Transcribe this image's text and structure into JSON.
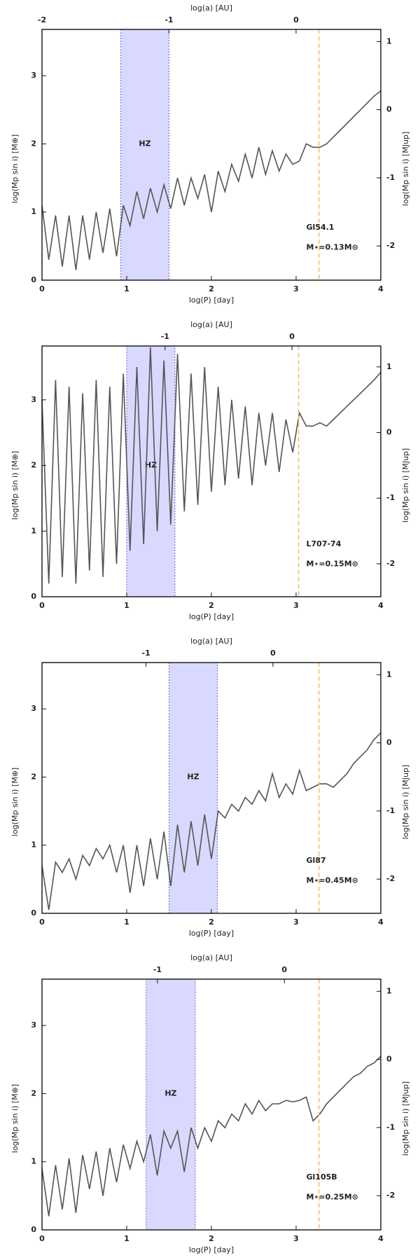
{
  "chart_data": [
    {
      "type": "line",
      "xlabel": "log(P) [day]",
      "x2label": "log(a) [AU]",
      "ylabel": "log(Mp sin i) [M⊕]",
      "y2label": "log(Mp sin i) [MJup]",
      "xlim": [
        0,
        4
      ],
      "xticks": [
        0,
        1,
        2,
        3,
        4
      ],
      "x2lim": [
        -2,
        0.667
      ],
      "x2ticks": [
        -2,
        -1,
        0
      ],
      "ylim": [
        0,
        3.68
      ],
      "yticks": [
        0,
        1,
        2,
        3
      ],
      "y2lim": [
        -2.502,
        1.178
      ],
      "y2ticks": [
        -2,
        -1,
        0,
        1
      ],
      "hz": {
        "label": "HZ",
        "range": [
          0.93,
          1.5
        ],
        "color": "#ccccff"
      },
      "vline": {
        "x": 3.27,
        "color": "#f5c060"
      },
      "star": "Gl54.1",
      "mass_label": "M⋆=0.13M⊙",
      "color": "#555555",
      "x": [
        0,
        0.08,
        0.16,
        0.24,
        0.32,
        0.4,
        0.48,
        0.56,
        0.64,
        0.72,
        0.8,
        0.88,
        0.96,
        1.04,
        1.12,
        1.2,
        1.28,
        1.36,
        1.44,
        1.52,
        1.6,
        1.68,
        1.76,
        1.84,
        1.92,
        2.0,
        2.08,
        2.16,
        2.24,
        2.32,
        2.4,
        2.48,
        2.56,
        2.64,
        2.72,
        2.8,
        2.88,
        2.96,
        3.04,
        3.12,
        3.2,
        3.28,
        3.36,
        3.44,
        3.52,
        3.6,
        3.68,
        3.76,
        3.84,
        3.92,
        4.0
      ],
      "values": [
        1.1,
        0.3,
        0.95,
        0.2,
        0.95,
        0.15,
        0.95,
        0.3,
        1.0,
        0.4,
        1.05,
        0.35,
        1.1,
        0.8,
        1.3,
        0.9,
        1.35,
        1.0,
        1.4,
        1.05,
        1.5,
        1.1,
        1.5,
        1.2,
        1.55,
        1.0,
        1.6,
        1.3,
        1.7,
        1.45,
        1.85,
        1.5,
        1.95,
        1.55,
        1.9,
        1.6,
        1.85,
        1.7,
        1.75,
        2.0,
        1.95,
        1.95,
        2.0,
        2.1,
        2.2,
        2.3,
        2.4,
        2.5,
        2.6,
        2.7,
        2.78
      ]
    },
    {
      "type": "line",
      "xlabel": "log(P) [day]",
      "x2label": "log(a) [AU]",
      "ylabel": "log(Mp sin i) [M⊕]",
      "y2label": "log(Mp sin i) [MJup]",
      "xlim": [
        0,
        4
      ],
      "xticks": [
        0,
        1,
        2,
        3,
        4
      ],
      "x2lim": [
        -1.97,
        0.7
      ],
      "x2ticks": [
        -1,
        0
      ],
      "ylim": [
        0,
        3.82
      ],
      "yticks": [
        0,
        1,
        2,
        3
      ],
      "y2lim": [
        -2.502,
        1.318
      ],
      "y2ticks": [
        -2,
        -1,
        0,
        1
      ],
      "hz": {
        "label": "HZ",
        "range": [
          1.0,
          1.57
        ],
        "color": "#ccccff"
      },
      "vline": {
        "x": 3.03,
        "color": "#f5c060"
      },
      "star": "L707-74",
      "mass_label": "M⋆=0.15M⊙",
      "color": "#555555",
      "x": [
        0,
        0.08,
        0.16,
        0.24,
        0.32,
        0.4,
        0.48,
        0.56,
        0.64,
        0.72,
        0.8,
        0.88,
        0.96,
        1.04,
        1.12,
        1.2,
        1.28,
        1.36,
        1.44,
        1.52,
        1.6,
        1.68,
        1.76,
        1.84,
        1.92,
        2.0,
        2.08,
        2.16,
        2.24,
        2.32,
        2.4,
        2.48,
        2.56,
        2.64,
        2.72,
        2.8,
        2.88,
        2.96,
        3.04,
        3.12,
        3.2,
        3.28,
        3.36,
        3.44,
        3.52,
        3.6,
        3.68,
        3.76,
        3.84,
        3.92,
        4.0
      ],
      "values": [
        3.0,
        0.2,
        3.3,
        0.3,
        3.2,
        0.2,
        3.1,
        0.4,
        3.3,
        0.3,
        3.2,
        0.5,
        3.4,
        0.7,
        3.5,
        0.8,
        3.8,
        1.0,
        3.6,
        1.1,
        3.7,
        1.3,
        3.4,
        1.4,
        3.5,
        1.6,
        3.2,
        1.7,
        3.0,
        1.8,
        2.9,
        1.7,
        2.8,
        2.0,
        2.8,
        1.9,
        2.7,
        2.2,
        2.8,
        2.6,
        2.6,
        2.65,
        2.6,
        2.7,
        2.8,
        2.9,
        3.0,
        3.1,
        3.2,
        3.3,
        3.42
      ]
    },
    {
      "type": "line",
      "xlabel": "log(P) [day]",
      "x2label": "log(a) [AU]",
      "ylabel": "log(Mp sin i) [M⊕]",
      "y2label": "log(Mp sin i) [MJup]",
      "xlim": [
        0,
        4
      ],
      "xticks": [
        0,
        1,
        2,
        3,
        4
      ],
      "x2lim": [
        -1.82,
        0.85
      ],
      "x2ticks": [
        -1,
        0
      ],
      "ylim": [
        0,
        3.68
      ],
      "yticks": [
        0,
        1,
        2,
        3
      ],
      "y2lim": [
        -2.502,
        1.178
      ],
      "y2ticks": [
        -2,
        -1,
        0,
        1
      ],
      "hz": {
        "label": "HZ",
        "range": [
          1.5,
          2.07
        ],
        "color": "#ccccff"
      },
      "vline": {
        "x": 3.27,
        "color": "#f5c060"
      },
      "star": "Gl87",
      "mass_label": "M⋆=0.45M⊙",
      "color": "#555555",
      "x": [
        0,
        0.08,
        0.16,
        0.24,
        0.32,
        0.4,
        0.48,
        0.56,
        0.64,
        0.72,
        0.8,
        0.88,
        0.96,
        1.04,
        1.12,
        1.2,
        1.28,
        1.36,
        1.44,
        1.52,
        1.6,
        1.68,
        1.76,
        1.84,
        1.92,
        2.0,
        2.08,
        2.16,
        2.24,
        2.32,
        2.4,
        2.48,
        2.56,
        2.64,
        2.72,
        2.8,
        2.88,
        2.96,
        3.04,
        3.12,
        3.2,
        3.28,
        3.36,
        3.44,
        3.52,
        3.6,
        3.68,
        3.76,
        3.84,
        3.92,
        4.0
      ],
      "values": [
        0.7,
        0.05,
        0.75,
        0.6,
        0.8,
        0.5,
        0.85,
        0.7,
        0.95,
        0.8,
        1.0,
        0.6,
        1.0,
        0.3,
        1.0,
        0.4,
        1.1,
        0.5,
        1.2,
        0.4,
        1.3,
        0.6,
        1.35,
        0.7,
        1.45,
        0.8,
        1.5,
        1.4,
        1.6,
        1.5,
        1.7,
        1.6,
        1.8,
        1.65,
        2.05,
        1.7,
        1.9,
        1.75,
        2.1,
        1.8,
        1.85,
        1.9,
        1.9,
        1.85,
        1.95,
        2.05,
        2.2,
        2.3,
        2.4,
        2.55,
        2.65
      ]
    },
    {
      "type": "line",
      "xlabel": "log(P) [day]",
      "x2label": "log(a) [AU]",
      "ylabel": "log(Mp sin i) [M⊕]",
      "y2label": "log(Mp sin i) [MJup]",
      "xlim": [
        0,
        4
      ],
      "xticks": [
        0,
        1,
        2,
        3,
        4
      ],
      "x2lim": [
        -1.91,
        0.76
      ],
      "x2ticks": [
        -1,
        0
      ],
      "ylim": [
        0,
        3.68
      ],
      "yticks": [
        0,
        1,
        2,
        3
      ],
      "y2lim": [
        -2.502,
        1.178
      ],
      "y2ticks": [
        -2,
        -1,
        0,
        1
      ],
      "hz": {
        "label": "HZ",
        "range": [
          1.23,
          1.81
        ],
        "color": "#ccccff"
      },
      "vline": {
        "x": 3.27,
        "color": "#f5c060"
      },
      "star": "Gl105B",
      "mass_label": "M⋆=0.25M⊙",
      "color": "#555555",
      "x": [
        0,
        0.08,
        0.16,
        0.24,
        0.32,
        0.4,
        0.48,
        0.56,
        0.64,
        0.72,
        0.8,
        0.88,
        0.96,
        1.04,
        1.12,
        1.2,
        1.28,
        1.36,
        1.44,
        1.52,
        1.6,
        1.68,
        1.76,
        1.84,
        1.92,
        2.0,
        2.08,
        2.16,
        2.24,
        2.32,
        2.4,
        2.48,
        2.56,
        2.64,
        2.72,
        2.8,
        2.88,
        2.96,
        3.04,
        3.12,
        3.2,
        3.28,
        3.36,
        3.44,
        3.52,
        3.6,
        3.68,
        3.76,
        3.84,
        3.92,
        4.0
      ],
      "values": [
        0.9,
        0.2,
        0.95,
        0.3,
        1.05,
        0.25,
        1.1,
        0.6,
        1.15,
        0.5,
        1.2,
        0.7,
        1.25,
        0.9,
        1.3,
        1.0,
        1.4,
        0.8,
        1.45,
        1.2,
        1.45,
        0.85,
        1.5,
        1.2,
        1.5,
        1.3,
        1.6,
        1.5,
        1.7,
        1.6,
        1.85,
        1.7,
        1.9,
        1.75,
        1.85,
        1.85,
        1.9,
        1.88,
        1.9,
        1.95,
        1.6,
        1.7,
        1.85,
        1.95,
        2.05,
        2.15,
        2.25,
        2.3,
        2.4,
        2.45,
        2.55
      ]
    }
  ]
}
